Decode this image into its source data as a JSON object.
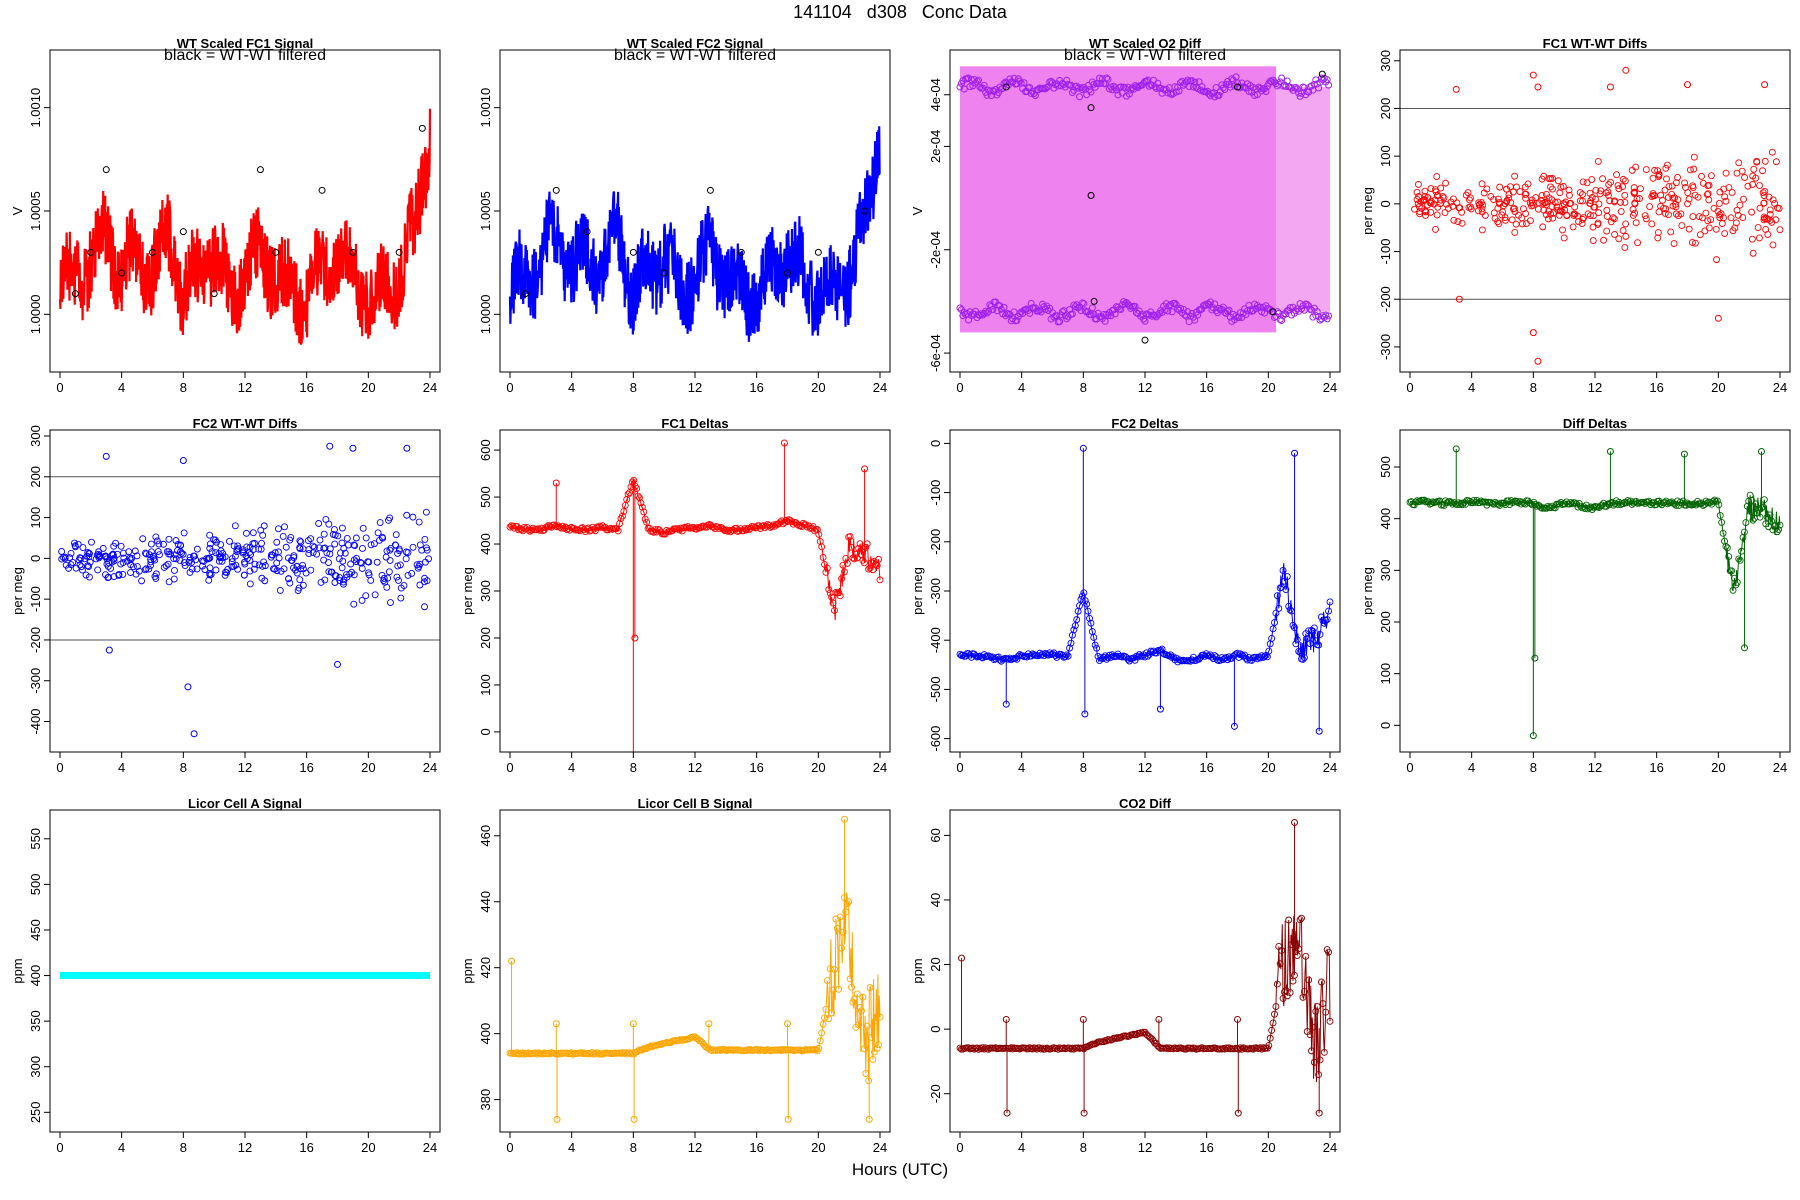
{
  "page": {
    "title": "141104   d308   Conc Data",
    "xlabel": "Hours (UTC)"
  },
  "chart_data": [
    {
      "id": "fc1sig",
      "type": "line",
      "title": "WT Scaled FC1 Signal",
      "subtitle": "black = WT-WT filtered",
      "ylabel": "V",
      "color": "#ff0000",
      "xlim": [
        0,
        24
      ],
      "ylim": [
        0.99975,
        1.00125
      ],
      "xticks": [
        0,
        4,
        8,
        12,
        16,
        20,
        24
      ],
      "yticks": [
        1.0,
        1.0005,
        1.001
      ],
      "ytick_labels": [
        "1.0000",
        "1.0005",
        "1.0010"
      ],
      "x": [
        0,
        1,
        2,
        3,
        4,
        5,
        6,
        7,
        8,
        9,
        10,
        11,
        12,
        13,
        14,
        15,
        16,
        17,
        18,
        19,
        20,
        21,
        22,
        23,
        24
      ],
      "series": [
        {
          "values": [
            1.0001,
            1.0002,
            1.00025,
            1.0004,
            1.0002,
            1.0003,
            1.0002,
            1.0004,
            1.0001,
            1.0002,
            1.0003,
            1.0001,
            1.0002,
            1.0003,
            1.0002,
            1.0001,
            1.0001,
            1.0002,
            1.0003,
            1.0002,
            1.0001,
            1.0001,
            1.0002,
            1.0004,
            1.0009
          ]
        }
      ],
      "black_points": [
        [
          1,
          1.0001
        ],
        [
          2,
          1.0003
        ],
        [
          3,
          1.0007
        ],
        [
          4,
          1.0002
        ],
        [
          6,
          1.0003
        ],
        [
          8,
          1.0004
        ],
        [
          10,
          1.0001
        ],
        [
          13,
          1.0007
        ],
        [
          14,
          1.0003
        ],
        [
          17,
          1.0006
        ],
        [
          19,
          1.0003
        ],
        [
          22,
          1.0003
        ],
        [
          23.5,
          1.0009
        ]
      ]
    },
    {
      "id": "fc2sig",
      "type": "line",
      "title": "WT Scaled FC2 Signal",
      "subtitle": "black = WT-WT filtered",
      "ylabel": "",
      "color": "#0000ff",
      "xlim": [
        0,
        24
      ],
      "ylim": [
        0.99975,
        1.00125
      ],
      "xticks": [
        0,
        4,
        8,
        12,
        16,
        20,
        24
      ],
      "yticks": [
        1.0,
        1.0005,
        1.001
      ],
      "ytick_labels": [
        "1.0000",
        "1.0005",
        "1.0010"
      ],
      "x": [
        0,
        1,
        2,
        3,
        4,
        5,
        6,
        7,
        8,
        9,
        10,
        11,
        12,
        13,
        14,
        15,
        16,
        17,
        18,
        19,
        20,
        21,
        22,
        23,
        24
      ],
      "series": [
        {
          "values": [
            1.0001,
            1.0002,
            1.00025,
            1.0004,
            1.0002,
            1.0003,
            1.0002,
            1.0004,
            1.0001,
            1.0002,
            1.0003,
            1.0001,
            1.0002,
            1.0003,
            1.0002,
            1.0001,
            1.0001,
            1.0002,
            1.0003,
            1.0002,
            1.0001,
            1.0001,
            1.0002,
            1.0004,
            1.0009
          ]
        }
      ],
      "black_points": [
        [
          1,
          1.0001
        ],
        [
          3,
          1.0006
        ],
        [
          5,
          1.0004
        ],
        [
          8,
          1.0003
        ],
        [
          10,
          1.0002
        ],
        [
          13,
          1.0006
        ],
        [
          15,
          1.0003
        ],
        [
          18,
          1.0002
        ],
        [
          20,
          1.0003
        ],
        [
          23,
          1.0005
        ]
      ]
    },
    {
      "id": "o2diff",
      "type": "area",
      "title": "WT Scaled O2 Diff",
      "subtitle": "black = WT-WT filtered",
      "ylabel": "V",
      "color": "#ee82ee",
      "point_color": "#a020f0",
      "xlim": [
        0,
        24
      ],
      "ylim": [
        -0.00065,
        0.00055
      ],
      "xticks": [
        0,
        4,
        8,
        12,
        16,
        20,
        24
      ],
      "yticks": [
        -0.0006,
        -0.0002,
        0.0002,
        0.0004
      ],
      "ytick_labels": [
        "-6e-04",
        "-2e-04",
        "2e-04",
        "4e-04"
      ],
      "upper": 0.00043,
      "lower": -0.00044,
      "band_end": 20.5,
      "black_points": [
        [
          3,
          0.00043
        ],
        [
          8.5,
          0.00035
        ],
        [
          8.5,
          1e-05
        ],
        [
          8.7,
          -0.0004
        ],
        [
          18,
          0.00043
        ],
        [
          20.3,
          -0.00044
        ],
        [
          23.5,
          0.00048
        ],
        [
          12,
          -0.00055
        ]
      ]
    },
    {
      "id": "fc1wt",
      "type": "scatter",
      "title": "FC1 WT-WT Diffs",
      "ylabel": "per meg",
      "color": "#ff0000",
      "xlim": [
        0,
        24
      ],
      "ylim": [
        -340,
        310
      ],
      "hlines": [
        200,
        -200
      ],
      "xticks": [
        0,
        4,
        8,
        12,
        16,
        20,
        24
      ],
      "yticks": [
        -300,
        -200,
        -100,
        0,
        100,
        200,
        300
      ],
      "spread": 70,
      "seed": 11,
      "n": 420,
      "outliers": [
        [
          3,
          240
        ],
        [
          8,
          270
        ],
        [
          8.3,
          245
        ],
        [
          13,
          245
        ],
        [
          14,
          280
        ],
        [
          18,
          250
        ],
        [
          23,
          250
        ],
        [
          8.3,
          -330
        ],
        [
          3.2,
          -200
        ],
        [
          8,
          -270
        ],
        [
          20,
          -240
        ]
      ]
    },
    {
      "id": "fc2wt",
      "type": "scatter",
      "title": "FC2 WT-WT Diffs",
      "ylabel": "per meg",
      "color": "#0000ff",
      "xlim": [
        0,
        24
      ],
      "ylim": [
        -460,
        300
      ],
      "hlines": [
        200,
        -200
      ],
      "xticks": [
        0,
        4,
        8,
        12,
        16,
        20,
        24
      ],
      "yticks": [
        -400,
        -300,
        -200,
        -100,
        0,
        100,
        200,
        300
      ],
      "spread": 70,
      "seed": 23,
      "n": 420,
      "outliers": [
        [
          3,
          250
        ],
        [
          8,
          240
        ],
        [
          8.7,
          -430
        ],
        [
          8.3,
          -315
        ],
        [
          17.5,
          275
        ],
        [
          19,
          270
        ],
        [
          22.5,
          270
        ],
        [
          3.2,
          -225
        ],
        [
          18,
          -260
        ]
      ]
    },
    {
      "id": "fc1d",
      "type": "line",
      "title": "FC1 Deltas",
      "ylabel": "per meg",
      "color": "#ff0000",
      "xlim": [
        0,
        24
      ],
      "ylim": [
        -30,
        630
      ],
      "xticks": [
        0,
        4,
        8,
        12,
        16,
        20,
        24
      ],
      "yticks": [
        0,
        100,
        200,
        300,
        400,
        500,
        600
      ],
      "x": [
        0,
        1,
        2,
        3,
        4,
        5,
        6,
        7,
        8,
        9,
        10,
        11,
        12,
        13,
        14,
        15,
        16,
        17,
        18,
        19,
        20,
        21,
        22,
        23,
        24
      ],
      "series": [
        {
          "values": [
            435,
            432,
            430,
            440,
            432,
            430,
            435,
            430,
            540,
            430,
            425,
            430,
            435,
            440,
            430,
            430,
            435,
            440,
            450,
            440,
            430,
            250,
            400,
            380,
            350
          ]
        }
      ],
      "spikes": [
        [
          3,
          530
        ],
        [
          8,
          -50
        ],
        [
          8.1,
          200
        ],
        [
          17.8,
          615
        ],
        [
          23,
          560
        ]
      ]
    },
    {
      "id": "fc2d",
      "type": "line",
      "title": "FC2 Deltas",
      "ylabel": "per meg",
      "color": "#0000ff",
      "xlim": [
        0,
        24
      ],
      "ylim": [
        -615,
        15
      ],
      "xticks": [
        0,
        4,
        8,
        12,
        16,
        20,
        24
      ],
      "yticks": [
        -600,
        -500,
        -400,
        -300,
        -200,
        -100,
        0
      ],
      "x": [
        0,
        1,
        2,
        3,
        4,
        5,
        6,
        7,
        8,
        9,
        10,
        11,
        12,
        13,
        14,
        15,
        16,
        17,
        18,
        19,
        20,
        21,
        22,
        23,
        24
      ],
      "series": [
        {
          "values": [
            -430,
            -432,
            -435,
            -440,
            -432,
            -430,
            -430,
            -432,
            -300,
            -440,
            -430,
            -440,
            -430,
            -420,
            -440,
            -440,
            -430,
            -440,
            -430,
            -440,
            -430,
            -260,
            -420,
            -400,
            -340
          ]
        }
      ],
      "spikes": [
        [
          3,
          -530
        ],
        [
          8,
          -10
        ],
        [
          8.1,
          -550
        ],
        [
          13,
          -540
        ],
        [
          17.8,
          -575
        ],
        [
          21.7,
          -20
        ],
        [
          23.3,
          -585
        ]
      ]
    },
    {
      "id": "diffd",
      "type": "line",
      "title": "Diff Deltas",
      "ylabel": "per meg",
      "color": "#006400",
      "xlim": [
        0,
        24
      ],
      "ylim": [
        -40,
        560
      ],
      "xticks": [
        0,
        4,
        8,
        12,
        16,
        20,
        24
      ],
      "yticks": [
        0,
        100,
        200,
        300,
        400,
        500
      ],
      "x": [
        0,
        1,
        2,
        3,
        4,
        5,
        6,
        7,
        8,
        9,
        10,
        11,
        12,
        13,
        14,
        15,
        16,
        17,
        18,
        19,
        20,
        21,
        22,
        23,
        24
      ],
      "series": [
        {
          "values": [
            430,
            432,
            430,
            430,
            432,
            430,
            430,
            432,
            430,
            420,
            430,
            425,
            420,
            430,
            432,
            430,
            430,
            430,
            430,
            430,
            432,
            250,
            420,
            420,
            380
          ]
        }
      ],
      "spikes": [
        [
          3,
          535
        ],
        [
          8,
          -20
        ],
        [
          8.1,
          130
        ],
        [
          13,
          530
        ],
        [
          17.8,
          525
        ],
        [
          21.7,
          150
        ],
        [
          22.8,
          530
        ]
      ]
    },
    {
      "id": "licora",
      "type": "line",
      "title": "Licor Cell A Signal",
      "ylabel": "ppm",
      "color": "#00ffff",
      "xlim": [
        0,
        24
      ],
      "ylim": [
        235,
        575
      ],
      "xticks": [
        0,
        4,
        8,
        12,
        16,
        20,
        24
      ],
      "yticks": [
        250,
        300,
        350,
        400,
        450,
        500,
        550
      ],
      "x": [
        0,
        24
      ],
      "series": [
        {
          "values": [
            400,
            400
          ]
        }
      ]
    },
    {
      "id": "licorb",
      "type": "line",
      "title": "Licor Cell B Signal",
      "ylabel": "ppm",
      "color": "#ffa500",
      "xlim": [
        0,
        24
      ],
      "ylim": [
        372,
        466
      ],
      "xticks": [
        0,
        4,
        8,
        12,
        16,
        20,
        24
      ],
      "yticks": [
        380,
        400,
        420,
        440,
        460
      ],
      "x": [
        0,
        1,
        2,
        3,
        4,
        5,
        6,
        7,
        8,
        9,
        10,
        11,
        12,
        13,
        14,
        15,
        16,
        17,
        18,
        19,
        20,
        21,
        22,
        23,
        24
      ],
      "series": [
        {
          "values": [
            394,
            394,
            394,
            394,
            394,
            394,
            394,
            394,
            394,
            396,
            397,
            398,
            399,
            395,
            395,
            395,
            395,
            395,
            395,
            395,
            395,
            420,
            430,
            395,
            412
          ]
        }
      ],
      "spikes": [
        [
          3,
          403
        ],
        [
          3.05,
          374
        ],
        [
          8,
          403
        ],
        [
          8.05,
          374
        ],
        [
          12.9,
          403
        ],
        [
          18,
          403
        ],
        [
          18.05,
          374
        ],
        [
          21.7,
          465
        ],
        [
          23.3,
          374
        ],
        [
          0.1,
          422
        ]
      ]
    },
    {
      "id": "co2diff",
      "type": "line",
      "title": "CO2 Diff",
      "ylabel": "ppm",
      "color": "#8b0000",
      "xlim": [
        0,
        24
      ],
      "ylim": [
        -30,
        66
      ],
      "xticks": [
        0,
        4,
        8,
        12,
        16,
        20,
        24
      ],
      "yticks": [
        -20,
        0,
        20,
        40,
        60
      ],
      "x": [
        0,
        1,
        2,
        3,
        4,
        5,
        6,
        7,
        8,
        9,
        10,
        11,
        12,
        13,
        14,
        15,
        16,
        17,
        18,
        19,
        20,
        21,
        22,
        23,
        24
      ],
      "series": [
        {
          "values": [
            -6,
            -6,
            -6,
            -6,
            -6,
            -6,
            -6,
            -6,
            -6,
            -4,
            -3,
            -2,
            -1,
            -6,
            -6,
            -6,
            -6,
            -6,
            -6,
            -6,
            -6,
            20,
            30,
            -6,
            15
          ]
        }
      ],
      "spikes": [
        [
          3,
          3
        ],
        [
          3.05,
          -26
        ],
        [
          8,
          3
        ],
        [
          8.05,
          -26
        ],
        [
          12.9,
          3
        ],
        [
          18,
          3
        ],
        [
          18.05,
          -26
        ],
        [
          21.7,
          64
        ],
        [
          23.3,
          -26
        ],
        [
          0.1,
          22
        ]
      ]
    }
  ]
}
